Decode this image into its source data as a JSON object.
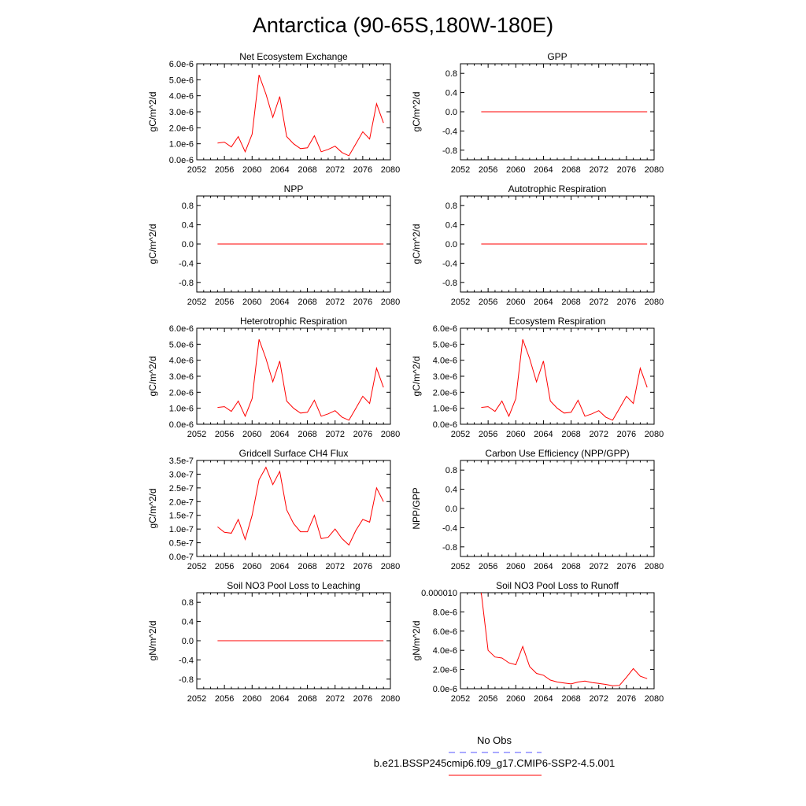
{
  "figure": {
    "title": "Antarctica (90-65S,180W-180E)"
  },
  "chart_data": [
    {
      "type": "line",
      "title": "Net Ecosystem Exchange",
      "ylabel": "gC/m^2/d",
      "xlim": [
        2052,
        2080
      ],
      "xticks": [
        "2052",
        "2056",
        "2060",
        "2064",
        "2068",
        "2072",
        "2076",
        "2080"
      ],
      "ylim": [
        0,
        6e-06
      ],
      "yticks": [
        "0.0e-6",
        "1.0e-6",
        "2.0e-6",
        "3.0e-6",
        "4.0e-6",
        "5.0e-6",
        "6.0e-6"
      ],
      "series": [
        {
          "x": [
            2055,
            2056,
            2057,
            2058,
            2059,
            2060,
            2061,
            2062,
            2063,
            2064,
            2065,
            2066,
            2067,
            2068,
            2069,
            2070,
            2071,
            2072,
            2073,
            2074,
            2075,
            2076,
            2077,
            2078,
            2079
          ],
          "y": [
            1.05e-06,
            1.1e-06,
            8e-07,
            1.45e-06,
            5e-07,
            1.6e-06,
            5.3e-06,
            4.1e-06,
            2.65e-06,
            3.95e-06,
            1.45e-06,
            1e-06,
            7e-07,
            7.5e-07,
            1.5e-06,
            5e-07,
            6.5e-07,
            8.5e-07,
            4.5e-07,
            2.5e-07,
            1e-06,
            1.75e-06,
            1.3e-06,
            3.5e-06,
            2.3e-06
          ]
        }
      ]
    },
    {
      "type": "line",
      "title": "GPP",
      "ylabel": "gC/m^2/d",
      "xlim": [
        2052,
        2080
      ],
      "xticks": [
        "2052",
        "2056",
        "2060",
        "2064",
        "2068",
        "2072",
        "2076",
        "2080"
      ],
      "ylim": [
        -1,
        1
      ],
      "yticks": [
        "-0.8",
        "-0.4",
        "0.0",
        "0.4",
        "0.8"
      ],
      "series": [
        {
          "x": [
            2055,
            2079
          ],
          "y": [
            0,
            0
          ]
        }
      ]
    },
    {
      "type": "line",
      "title": "NPP",
      "ylabel": "gC/m^2/d",
      "xlim": [
        2052,
        2080
      ],
      "xticks": [
        "2052",
        "2056",
        "2060",
        "2064",
        "2068",
        "2072",
        "2076",
        "2080"
      ],
      "ylim": [
        -1,
        1
      ],
      "yticks": [
        "-0.8",
        "-0.4",
        "0.0",
        "0.4",
        "0.8"
      ],
      "series": [
        {
          "x": [
            2055,
            2079
          ],
          "y": [
            0,
            0
          ]
        }
      ]
    },
    {
      "type": "line",
      "title": "Autotrophic Respiration",
      "ylabel": "gC/m^2/d",
      "xlim": [
        2052,
        2080
      ],
      "xticks": [
        "2052",
        "2056",
        "2060",
        "2064",
        "2068",
        "2072",
        "2076",
        "2080"
      ],
      "ylim": [
        -1,
        1
      ],
      "yticks": [
        "-0.8",
        "-0.4",
        "0.0",
        "0.4",
        "0.8"
      ],
      "series": [
        {
          "x": [
            2055,
            2079
          ],
          "y": [
            0,
            0
          ]
        }
      ]
    },
    {
      "type": "line",
      "title": "Heterotrophic Respiration",
      "ylabel": "gC/m^2/d",
      "xlim": [
        2052,
        2080
      ],
      "xticks": [
        "2052",
        "2056",
        "2060",
        "2064",
        "2068",
        "2072",
        "2076",
        "2080"
      ],
      "ylim": [
        0,
        6e-06
      ],
      "yticks": [
        "0.0e-6",
        "1.0e-6",
        "2.0e-6",
        "3.0e-6",
        "4.0e-6",
        "5.0e-6",
        "6.0e-6"
      ],
      "series": [
        {
          "x": [
            2055,
            2056,
            2057,
            2058,
            2059,
            2060,
            2061,
            2062,
            2063,
            2064,
            2065,
            2066,
            2067,
            2068,
            2069,
            2070,
            2071,
            2072,
            2073,
            2074,
            2075,
            2076,
            2077,
            2078,
            2079
          ],
          "y": [
            1.05e-06,
            1.1e-06,
            8e-07,
            1.45e-06,
            5e-07,
            1.6e-06,
            5.3e-06,
            4.1e-06,
            2.65e-06,
            3.95e-06,
            1.45e-06,
            1e-06,
            7e-07,
            7.5e-07,
            1.5e-06,
            5e-07,
            6.5e-07,
            8.5e-07,
            4.5e-07,
            2.5e-07,
            1e-06,
            1.75e-06,
            1.3e-06,
            3.5e-06,
            2.3e-06
          ]
        }
      ]
    },
    {
      "type": "line",
      "title": "Ecosystem Respiration",
      "ylabel": "gC/m^2/d",
      "xlim": [
        2052,
        2080
      ],
      "xticks": [
        "2052",
        "2056",
        "2060",
        "2064",
        "2068",
        "2072",
        "2076",
        "2080"
      ],
      "ylim": [
        0,
        6e-06
      ],
      "yticks": [
        "0.0e-6",
        "1.0e-6",
        "2.0e-6",
        "3.0e-6",
        "4.0e-6",
        "5.0e-6",
        "6.0e-6"
      ],
      "series": [
        {
          "x": [
            2055,
            2056,
            2057,
            2058,
            2059,
            2060,
            2061,
            2062,
            2063,
            2064,
            2065,
            2066,
            2067,
            2068,
            2069,
            2070,
            2071,
            2072,
            2073,
            2074,
            2075,
            2076,
            2077,
            2078,
            2079
          ],
          "y": [
            1.05e-06,
            1.1e-06,
            8e-07,
            1.45e-06,
            5e-07,
            1.6e-06,
            5.3e-06,
            4.1e-06,
            2.65e-06,
            3.95e-06,
            1.45e-06,
            1e-06,
            7e-07,
            7.5e-07,
            1.5e-06,
            5e-07,
            6.5e-07,
            8.5e-07,
            4.5e-07,
            2.5e-07,
            1e-06,
            1.75e-06,
            1.3e-06,
            3.5e-06,
            2.3e-06
          ]
        }
      ]
    },
    {
      "type": "line",
      "title": "Gridcell Surface CH4 Flux",
      "ylabel": "gC/m^2/d",
      "xlim": [
        2052,
        2080
      ],
      "xticks": [
        "2052",
        "2056",
        "2060",
        "2064",
        "2068",
        "2072",
        "2076",
        "2080"
      ],
      "ylim": [
        0,
        3.5e-07
      ],
      "yticks": [
        "0.0e-7",
        "0.5e-7",
        "1.0e-7",
        "1.5e-7",
        "2.0e-7",
        "2.5e-7",
        "3.0e-7",
        "3.5e-7"
      ],
      "series": [
        {
          "x": [
            2055,
            2056,
            2057,
            2058,
            2059,
            2060,
            2061,
            2062,
            2063,
            2064,
            2065,
            2066,
            2067,
            2068,
            2069,
            2070,
            2071,
            2072,
            2073,
            2074,
            2075,
            2076,
            2077,
            2078,
            2079
          ],
          "y": [
            1.08e-07,
            8.8e-08,
            8.5e-08,
            1.35e-07,
            6.2e-08,
            1.5e-07,
            2.8e-07,
            3.25e-07,
            2.62e-07,
            3.1e-07,
            1.7e-07,
            1.2e-07,
            9e-08,
            9e-08,
            1.5e-07,
            6.5e-08,
            7e-08,
            1e-07,
            6.5e-08,
            4.2e-08,
            9.5e-08,
            1.35e-07,
            1.25e-07,
            2.5e-07,
            2e-07
          ]
        }
      ]
    },
    {
      "type": "line",
      "title": "Carbon Use Efficiency (NPP/GPP)",
      "ylabel": "NPP/GPP",
      "xlim": [
        2052,
        2080
      ],
      "xticks": [
        "2052",
        "2056",
        "2060",
        "2064",
        "2068",
        "2072",
        "2076",
        "2080"
      ],
      "ylim": [
        -1,
        1
      ],
      "yticks": [
        "-0.8",
        "-0.4",
        "0.0",
        "0.4",
        "0.8"
      ],
      "series": []
    },
    {
      "type": "line",
      "title": "Soil NO3 Pool Loss to Leaching",
      "ylabel": "gN/m^2/d",
      "xlim": [
        2052,
        2080
      ],
      "xticks": [
        "2052",
        "2056",
        "2060",
        "2064",
        "2068",
        "2072",
        "2076",
        "2080"
      ],
      "ylim": [
        -1,
        1
      ],
      "yticks": [
        "-0.8",
        "-0.4",
        "0.0",
        "0.4",
        "0.8"
      ],
      "series": [
        {
          "x": [
            2055,
            2079
          ],
          "y": [
            0,
            0
          ]
        }
      ]
    },
    {
      "type": "line",
      "title": "Soil NO3 Pool Loss to Runoff",
      "ylabel": "gN/m^2/d",
      "xlim": [
        2052,
        2080
      ],
      "xticks": [
        "2052",
        "2056",
        "2060",
        "2064",
        "2068",
        "2072",
        "2076",
        "2080"
      ],
      "ylim": [
        0,
        1e-05
      ],
      "yticks": [
        "0.0e-6",
        "2.0e-6",
        "4.0e-6",
        "6.0e-6",
        "8.0e-6",
        "0.000010"
      ],
      "series": [
        {
          "x": [
            2055,
            2056,
            2057,
            2058,
            2059,
            2060,
            2061,
            2062,
            2063,
            2064,
            2065,
            2066,
            2067,
            2068,
            2069,
            2070,
            2071,
            2072,
            2073,
            2074,
            2075,
            2076,
            2077,
            2078,
            2079
          ],
          "y": [
            1e-05,
            4e-06,
            3.3e-06,
            3.2e-06,
            2.7e-06,
            2.5e-06,
            4.4e-06,
            2.3e-06,
            1.6e-06,
            1.4e-06,
            9e-07,
            7e-07,
            6e-07,
            5e-07,
            7e-07,
            8e-07,
            6.5e-07,
            5.5e-07,
            4.5e-07,
            3e-07,
            3.5e-07,
            1.2e-06,
            2.1e-06,
            1.3e-06,
            1.05e-06
          ]
        }
      ]
    }
  ],
  "legend": {
    "items": [
      {
        "label": "No Obs",
        "color": "#5555ff",
        "style": "dashed"
      },
      {
        "label": "b.e21.BSSP245cmip6.f09_g17.CMIP6-SSP2-4.5.001",
        "color": "#ff0000",
        "style": "solid"
      }
    ]
  },
  "colors": {
    "series": "#ff0000",
    "obs": "#5555ff",
    "axes": "#000000"
  }
}
